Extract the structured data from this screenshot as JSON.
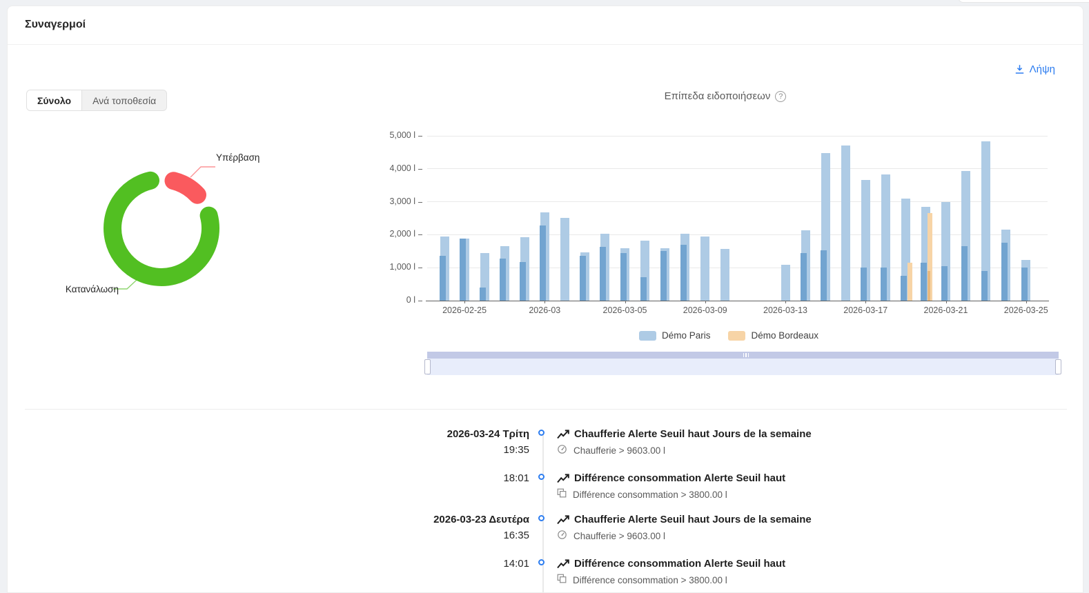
{
  "page": {
    "title": "Συναγερμοί"
  },
  "header": {
    "download_label": "Λήψη"
  },
  "tabs": [
    {
      "label": "Σύνολο",
      "active": true
    },
    {
      "label": "Ανά τοποθεσία",
      "active": false
    }
  ],
  "bar_section": {
    "title": "Επίπεδα ειδοποιήσεων",
    "help_glyph": "?"
  },
  "donut_labels": {
    "overflow": "Υπέρβαση",
    "consumption": "Κατανάλωση"
  },
  "colors": {
    "accent_blue": "#2b7cf0",
    "donut_green": "#52bf22",
    "donut_red": "#fa5a5e",
    "paris_light": "#aecbe5",
    "paris_dark": "#72a4d0",
    "bordeaux_light": "#f7d4a6",
    "bordeaux_dark": "#e9b97e"
  },
  "chart_data": [
    {
      "type": "pie",
      "labels": [
        "Κατανάλωση",
        "Υπέρβαση"
      ],
      "values_pct": [
        85,
        15
      ],
      "colors": [
        "#52bf22",
        "#fa5a5e"
      ],
      "legend_position": "callout-labels"
    },
    {
      "type": "bar",
      "title": "Επίπεδα ειδοποιήσεων",
      "unit": "l",
      "ylim": [
        0,
        5000
      ],
      "grid": true,
      "yticks": [
        "0 l",
        "1,000 l",
        "2,000 l",
        "3,000 l",
        "4,000 l",
        "5,000 l"
      ],
      "xticks": [
        {
          "index": 1,
          "label": "2026-02-25"
        },
        {
          "index": 5,
          "label": "2026-03"
        },
        {
          "index": 9,
          "label": "2026-03-05"
        },
        {
          "index": 13,
          "label": "2026-03-09"
        },
        {
          "index": 17,
          "label": "2026-03-13"
        },
        {
          "index": 21,
          "label": "2026-03-17"
        },
        {
          "index": 25,
          "label": "2026-03-21"
        },
        {
          "index": 29,
          "label": "2026-03-25"
        }
      ],
      "categories": [
        "2026-02-24",
        "2026-02-25",
        "2026-02-26",
        "2026-02-27",
        "2026-02-28",
        "2026-03-01",
        "2026-03-02",
        "2026-03-03",
        "2026-03-04",
        "2026-03-05",
        "2026-03-06",
        "2026-03-07",
        "2026-03-08",
        "2026-03-09",
        "2026-03-10",
        "2026-03-11",
        "2026-03-12",
        "2026-03-13",
        "2026-03-14",
        "2026-03-15",
        "2026-03-16",
        "2026-03-17",
        "2026-03-18",
        "2026-03-19",
        "2026-03-20",
        "2026-03-21",
        "2026-03-22",
        "2026-03-23",
        "2026-03-24",
        "2026-03-25"
      ],
      "series": [
        {
          "name": "Démo Paris",
          "color": "#aecbe5",
          "overlay_color": "#72a4d0",
          "values": [
            1950,
            1880,
            1440,
            1650,
            1930,
            2670,
            2515,
            1465,
            2040,
            1600,
            1830,
            1580,
            2030,
            1940,
            1560,
            0,
            0,
            1090,
            2140,
            4480,
            4700,
            3670,
            3830,
            3100,
            2840,
            3000,
            3930,
            4840,
            2150,
            1230
          ],
          "overlay_values": [
            1370,
            1880,
            390,
            1270,
            1180,
            2280,
            0,
            1370,
            1640,
            1440,
            710,
            1500,
            1700,
            0,
            0,
            0,
            0,
            0,
            1440,
            1520,
            0,
            1000,
            1000,
            760,
            1150,
            1050,
            1650,
            900,
            1750,
            1000
          ]
        },
        {
          "name": "Démo Bordeaux",
          "color": "#f7d4a6",
          "overlay_color": "#e9b97e",
          "values": [
            0,
            0,
            0,
            0,
            0,
            0,
            0,
            0,
            0,
            0,
            0,
            0,
            0,
            0,
            0,
            0,
            0,
            0,
            0,
            0,
            0,
            0,
            0,
            1160,
            2660,
            0,
            0,
            0,
            0,
            0
          ],
          "overlay_values": [
            0,
            0,
            0,
            0,
            0,
            0,
            0,
            0,
            0,
            0,
            0,
            0,
            0,
            0,
            0,
            0,
            0,
            0,
            0,
            0,
            0,
            0,
            0,
            0,
            890,
            0,
            0,
            0,
            0,
            0
          ]
        }
      ],
      "legend": [
        "Démo Paris",
        "Démo Bordeaux"
      ]
    }
  ],
  "timeline": {
    "entries": [
      {
        "date": "2026-03-24 Τρίτη",
        "time": "19:35",
        "title": "Chaufferie Alerte Seuil haut Jours de la semaine",
        "detail": "Chaufferie > 9603.00 l",
        "detail_icon": "gauge"
      },
      {
        "date": null,
        "time": "18:01",
        "title": "Différence consommation Alerte Seuil haut",
        "detail": "Différence consommation > 3800.00 l",
        "detail_icon": "copy"
      },
      {
        "date": "2026-03-23 Δευτέρα",
        "time": "16:35",
        "title": "Chaufferie Alerte Seuil haut Jours de la semaine",
        "detail": "Chaufferie > 9603.00 l",
        "detail_icon": "gauge"
      },
      {
        "date": null,
        "time": "14:01",
        "title": "Différence consommation Alerte Seuil haut",
        "detail": "Différence consommation > 3800.00 l",
        "detail_icon": "copy"
      }
    ]
  }
}
